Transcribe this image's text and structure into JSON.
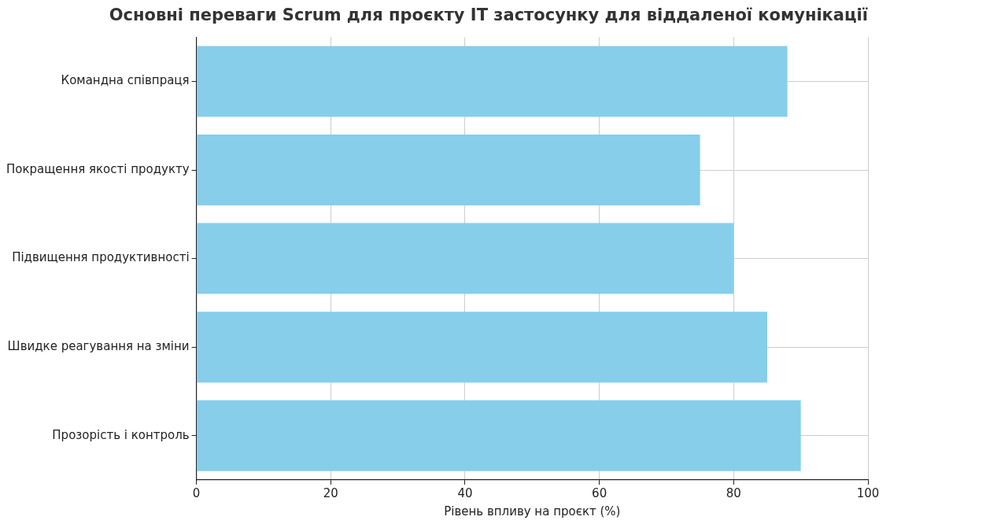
{
  "chart_data": {
    "type": "bar",
    "orientation": "horizontal",
    "title": "Основні переваги Scrum для проєкту IT застосунку для віддаленої комунікації",
    "xlabel": "Рівень впливу на проєкт (%)",
    "categories": [
      "Командна співпраця",
      "Покращення якості продукту",
      "Підвищення продуктивності",
      "Швидке реагування на зміни",
      "Прозорість і контроль"
    ],
    "values": [
      88,
      75,
      80,
      85,
      90
    ],
    "color": "#87ceeb",
    "xlim": [
      0,
      100
    ],
    "xticks": [
      0,
      20,
      40,
      60,
      80,
      100
    ],
    "grid": true
  }
}
